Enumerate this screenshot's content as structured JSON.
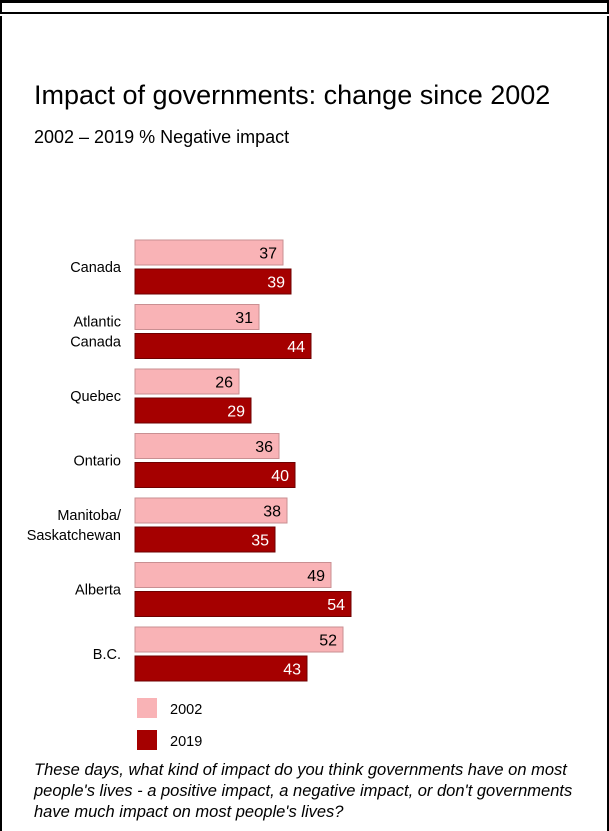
{
  "chart_data": {
    "type": "bar",
    "orientation": "horizontal",
    "title": "Impact of governments: change since 2002",
    "subtitle": "2002 – 2019 % Negative impact",
    "categories": [
      [
        "Canada"
      ],
      [
        "Atlantic",
        "Canada"
      ],
      [
        "Quebec"
      ],
      [
        "Ontario"
      ],
      [
        "Manitoba/",
        "Saskatchewan"
      ],
      [
        "Alberta"
      ],
      [
        "B.C."
      ]
    ],
    "series": [
      {
        "name": "2002",
        "color": "#f9b3b6",
        "values": [
          37,
          31,
          26,
          36,
          38,
          49,
          52
        ]
      },
      {
        "name": "2019",
        "color": "#a50000",
        "values": [
          39,
          44,
          29,
          40,
          35,
          54,
          43
        ]
      }
    ],
    "xlim": [
      0,
      100
    ],
    "grid": false,
    "legend_position": "bottom-left",
    "data_labels": true
  },
  "footnote": "These days, what kind of impact do you think governments have on most people's lives - a positive impact, a negative impact, or don't governments have much impact on most people's lives?"
}
